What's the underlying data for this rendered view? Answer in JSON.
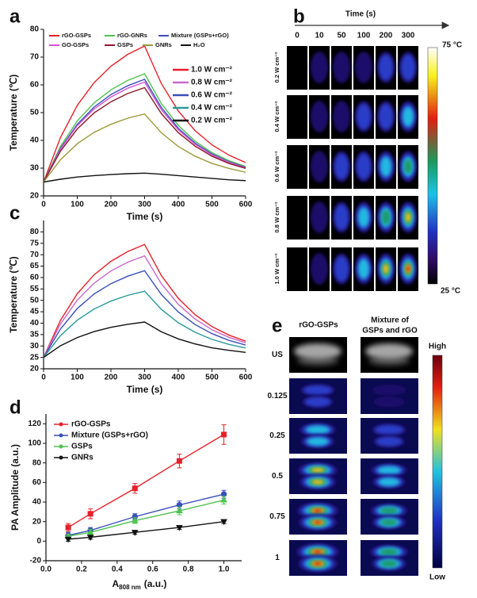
{
  "chart_data": [
    {
      "type": "line",
      "panel": "a",
      "x_label": "Time (s)",
      "y_label": "Temperature (℃)",
      "x": [
        0,
        50,
        100,
        150,
        200,
        250,
        300,
        350,
        400,
        450,
        500,
        550,
        600
      ],
      "xlim": [
        0,
        600
      ],
      "xticks": [
        0,
        100,
        200,
        300,
        400,
        500,
        600
      ],
      "ylim": [
        20,
        80
      ],
      "yticks": [
        20,
        30,
        40,
        50,
        60,
        70,
        80
      ],
      "series": [
        {
          "name": "rGO-GSPs",
          "color": "#e8202a",
          "values": [
            25,
            41,
            52.6,
            60.8,
            66.7,
            71,
            74,
            60.4,
            50.6,
            43.5,
            38.4,
            34.7,
            32
          ]
        },
        {
          "name": "rGO-GNRs",
          "color": "#4fc24f",
          "values": [
            25,
            37.8,
            47,
            53.5,
            58.2,
            61.6,
            64,
            53.2,
            45.4,
            39.7,
            35.6,
            32.7,
            30.6
          ]
        },
        {
          "name": "Mixture (GSPs+rGO)",
          "color": "#3a4fb8",
          "values": [
            25,
            37.1,
            45.8,
            52,
            56.5,
            59.7,
            62,
            51.8,
            44.4,
            39,
            35.1,
            32.3,
            30.3
          ]
        },
        {
          "name": "GO-GSPs",
          "color": "#d656d6",
          "values": [
            25,
            36.8,
            45.3,
            51.3,
            55.6,
            58.8,
            61,
            51,
            43.8,
            38.6,
            34.8,
            32.1,
            30.1
          ]
        },
        {
          "name": "GSPs",
          "color": "#8b1a2a",
          "values": [
            25,
            36.1,
            44.1,
            49.9,
            53.9,
            56.9,
            59,
            49.6,
            42.8,
            37.9,
            34.3,
            31.7,
            29.9
          ]
        },
        {
          "name": "GNRs",
          "color": "#9a9a3a",
          "values": [
            25,
            33,
            38.8,
            42.9,
            45.8,
            48,
            49.5,
            42.7,
            37.8,
            34.3,
            31.7,
            29.9,
            28.5
          ]
        },
        {
          "name": "H₂O",
          "color": "#111111",
          "values": [
            25,
            26,
            26.8,
            27.3,
            27.7,
            28,
            28.2,
            27.8,
            27.3,
            26.8,
            26.3,
            25.8,
            25.5
          ]
        }
      ]
    },
    {
      "type": "line",
      "panel": "c",
      "x_label": "Time (s)",
      "y_label": "Temperature (℃)",
      "x": [
        0,
        50,
        100,
        150,
        200,
        250,
        300,
        350,
        400,
        450,
        500,
        550,
        600
      ],
      "xlim": [
        0,
        600
      ],
      "xticks": [
        0,
        100,
        200,
        300,
        400,
        500,
        600
      ],
      "ylim": [
        20,
        85
      ],
      "yticks": [
        20,
        25,
        30,
        35,
        40,
        45,
        50,
        55,
        60,
        65,
        70,
        75,
        80
      ],
      "series": [
        {
          "name": "1.0 W cm⁻²",
          "color": "#e8202a",
          "values": [
            25,
            41.2,
            52.9,
            61.2,
            67.1,
            71.4,
            74.5,
            60.8,
            50.9,
            43.7,
            38.5,
            34.8,
            32.1
          ]
        },
        {
          "name": "0.8 W cm⁻²",
          "color": "#c868c8",
          "values": [
            25,
            39.6,
            50.1,
            57.5,
            62.9,
            66.7,
            69.5,
            57.2,
            48.3,
            41.8,
            37.1,
            33.8,
            31.4
          ]
        },
        {
          "name": "0.6 W cm⁻²",
          "color": "#3a4fb8",
          "values": [
            25,
            37.4,
            46.4,
            52.8,
            57.3,
            60.6,
            63,
            52.5,
            44.9,
            39.4,
            35.4,
            32.5,
            30.4
          ]
        },
        {
          "name": "0.4 W cm⁻²",
          "color": "#2a9a9a",
          "values": [
            25,
            34.5,
            41.3,
            46.2,
            49.7,
            52.2,
            54,
            46,
            40.2,
            36,
            32.9,
            30.7,
            29.1
          ]
        },
        {
          "name": "0.2 W cm⁻²",
          "color": "#111111",
          "values": [
            25,
            30.1,
            33.7,
            36.3,
            38.2,
            39.5,
            40.5,
            36.2,
            33.1,
            30.9,
            29.2,
            28.1,
            27.2
          ]
        }
      ]
    },
    {
      "type": "scatter",
      "panel": "d",
      "x_label_main": "A",
      "x_label_sub": "808 nm",
      "x_label_unit": "(a.u.)",
      "y_label": "PA Amplitude (a.u.)",
      "x": [
        0.125,
        0.25,
        0.5,
        0.75,
        1
      ],
      "xlim": [
        0,
        1.1
      ],
      "xticks": [
        {
          "value": 0,
          "label": "0.0"
        },
        {
          "value": 0.2,
          "label": "0.2"
        },
        {
          "value": 0.4,
          "label": "0.4"
        },
        {
          "value": 0.6,
          "label": "0.6"
        },
        {
          "value": 0.8,
          "label": "0.8"
        },
        {
          "value": 1,
          "label": "1.0"
        }
      ],
      "ylim": [
        -20,
        130
      ],
      "yticks": [
        -20,
        0,
        20,
        40,
        60,
        80,
        100,
        120
      ],
      "series": [
        {
          "name": "rGO-GSPs",
          "color": "#e8202a",
          "marker": "square",
          "values": [
            14,
            28,
            54,
            82,
            109
          ],
          "errors": [
            4,
            5,
            5,
            7,
            10
          ]
        },
        {
          "name": "Mixture (GSPs+rGO)",
          "color": "#3a4fb8",
          "marker": "circle",
          "values": [
            6,
            11,
            25,
            37,
            48
          ],
          "errors": [
            3,
            3,
            3,
            4,
            4
          ]
        },
        {
          "name": "GSPs",
          "color": "#4fc24f",
          "marker": "triangle-up",
          "values": [
            5,
            9,
            21,
            31,
            42
          ],
          "errors": [
            2,
            3,
            3,
            4,
            4
          ]
        },
        {
          "name": "GNRs",
          "color": "#111111",
          "marker": "triangle-down",
          "values": [
            2,
            4,
            9,
            14,
            20
          ],
          "errors": [
            2,
            2,
            2,
            2,
            2
          ]
        }
      ]
    }
  ],
  "panel_b": {
    "panel": "b",
    "axis_label": "Time (s)",
    "times": [
      "0",
      "10",
      "50",
      "100",
      "200",
      "300"
    ],
    "powers": [
      "0.2 W cm⁻²",
      "0.4 W cm⁻²",
      "0.6 W cm⁻²",
      "0.8 W cm⁻²",
      "1.0 W cm⁻²"
    ],
    "scale_max": "75 °C",
    "scale_min": "25 °C"
  },
  "panel_e": {
    "panel": "e",
    "column_1": "rGO-GSPs",
    "column_2": [
      "Mixture of",
      "GSPs and rGO"
    ],
    "rows": [
      "US",
      "0.125",
      "0.25",
      "0.5",
      "0.75",
      "1"
    ],
    "scale_max": "High",
    "scale_min": "Low"
  }
}
